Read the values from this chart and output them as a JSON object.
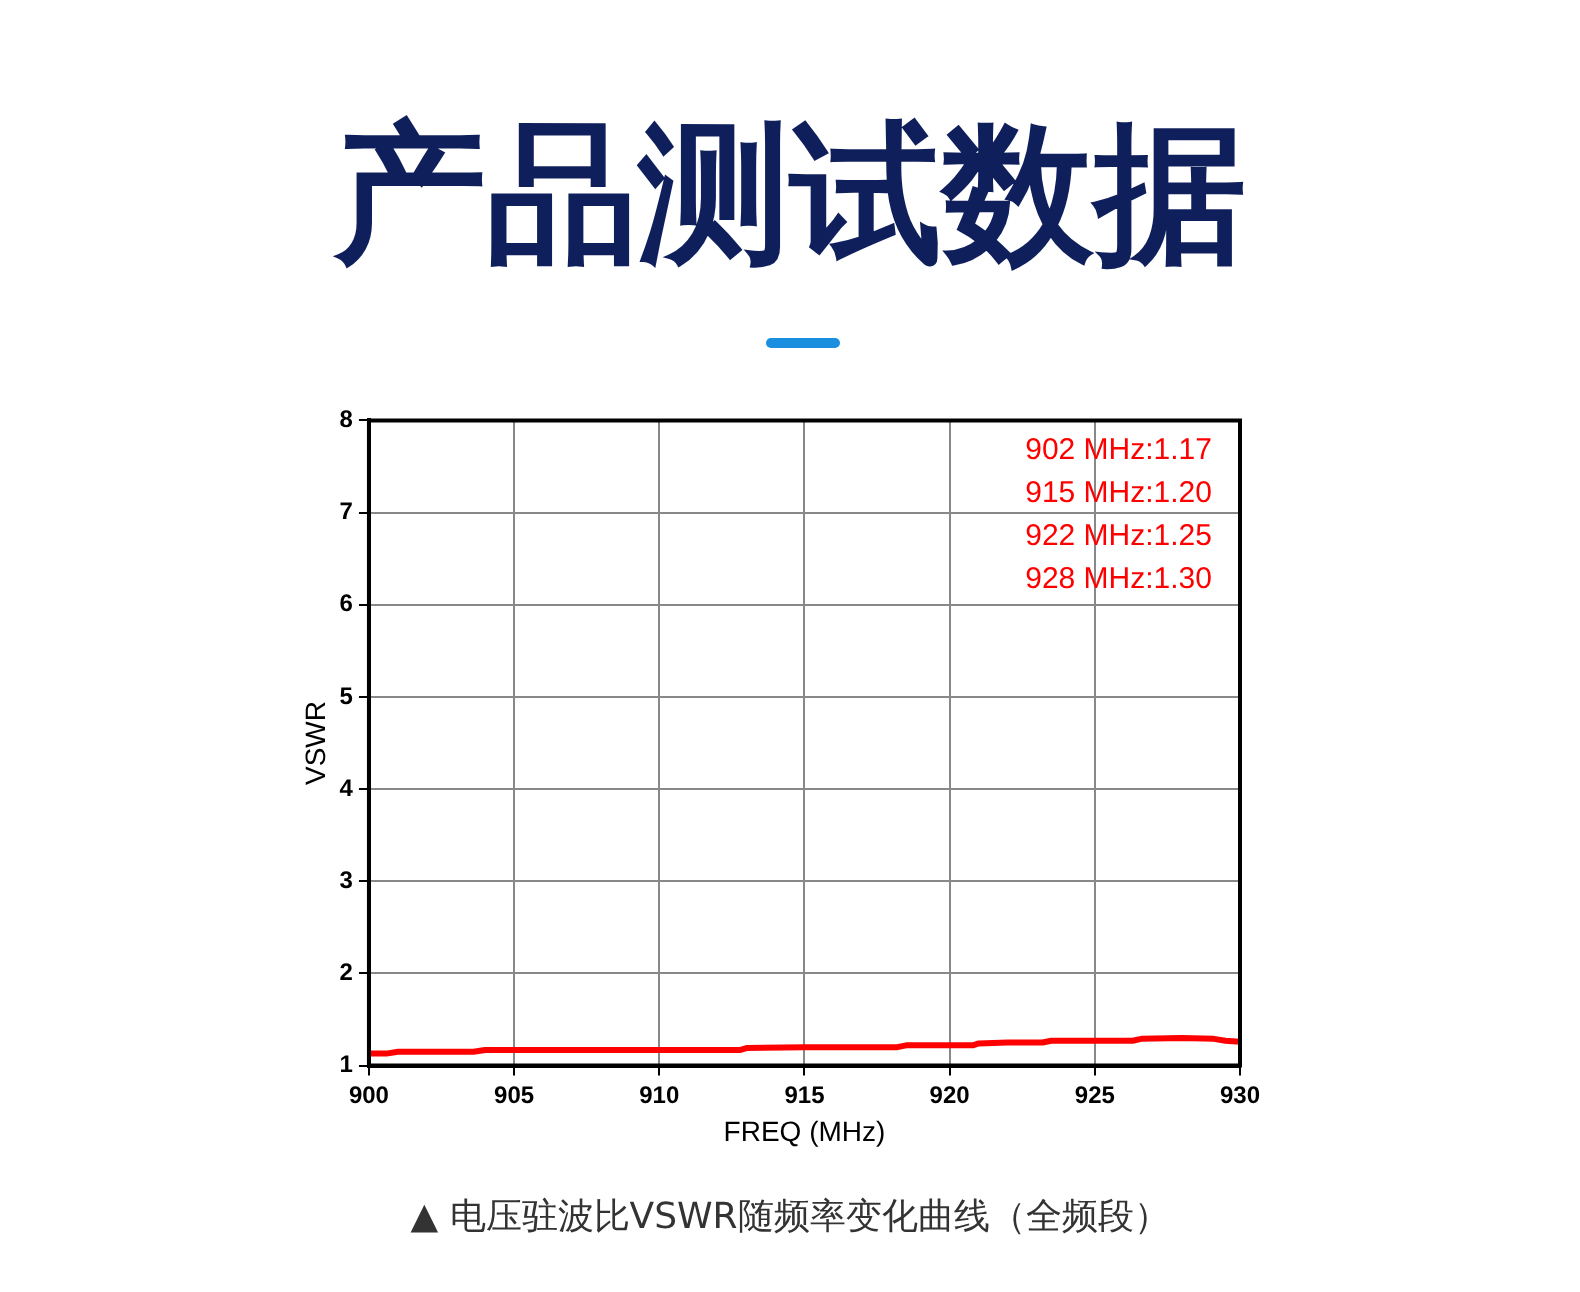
{
  "chart_data": {
    "type": "line",
    "title": "产品测试数据",
    "xlabel": "FREQ (MHz)",
    "ylabel": "VSWR",
    "x": [
      900,
      900.6,
      901,
      903.6,
      904,
      908,
      912.8,
      913,
      915,
      918.2,
      918.5,
      920.8,
      921,
      922,
      923.2,
      923.5,
      926.3,
      926.6,
      928,
      929.1,
      929.5,
      930
    ],
    "series": [
      {
        "color": "#ff0000",
        "values": [
          1.13,
          1.13,
          1.15,
          1.15,
          1.17,
          1.17,
          1.17,
          1.19,
          1.2,
          1.2,
          1.22,
          1.22,
          1.24,
          1.25,
          1.25,
          1.27,
          1.27,
          1.29,
          1.3,
          1.29,
          1.27,
          1.26
        ]
      }
    ],
    "xlim": [
      900,
      930
    ],
    "xticks": [
      900,
      905,
      910,
      915,
      920,
      925,
      930
    ],
    "ylim": [
      1,
      8
    ],
    "yticks": [
      1,
      2,
      3,
      4,
      5,
      6,
      7,
      8
    ],
    "grid": true,
    "legend": false,
    "marker": "none",
    "line_style": "solid",
    "annotations": [
      "902 MHz:1.17",
      "915 MHz:1.20",
      "922 MHz:1.25",
      "928 MHz:1.30",
      "▲ 电压驻波比VSWR随频率变化曲线（全频段）"
    ]
  }
}
